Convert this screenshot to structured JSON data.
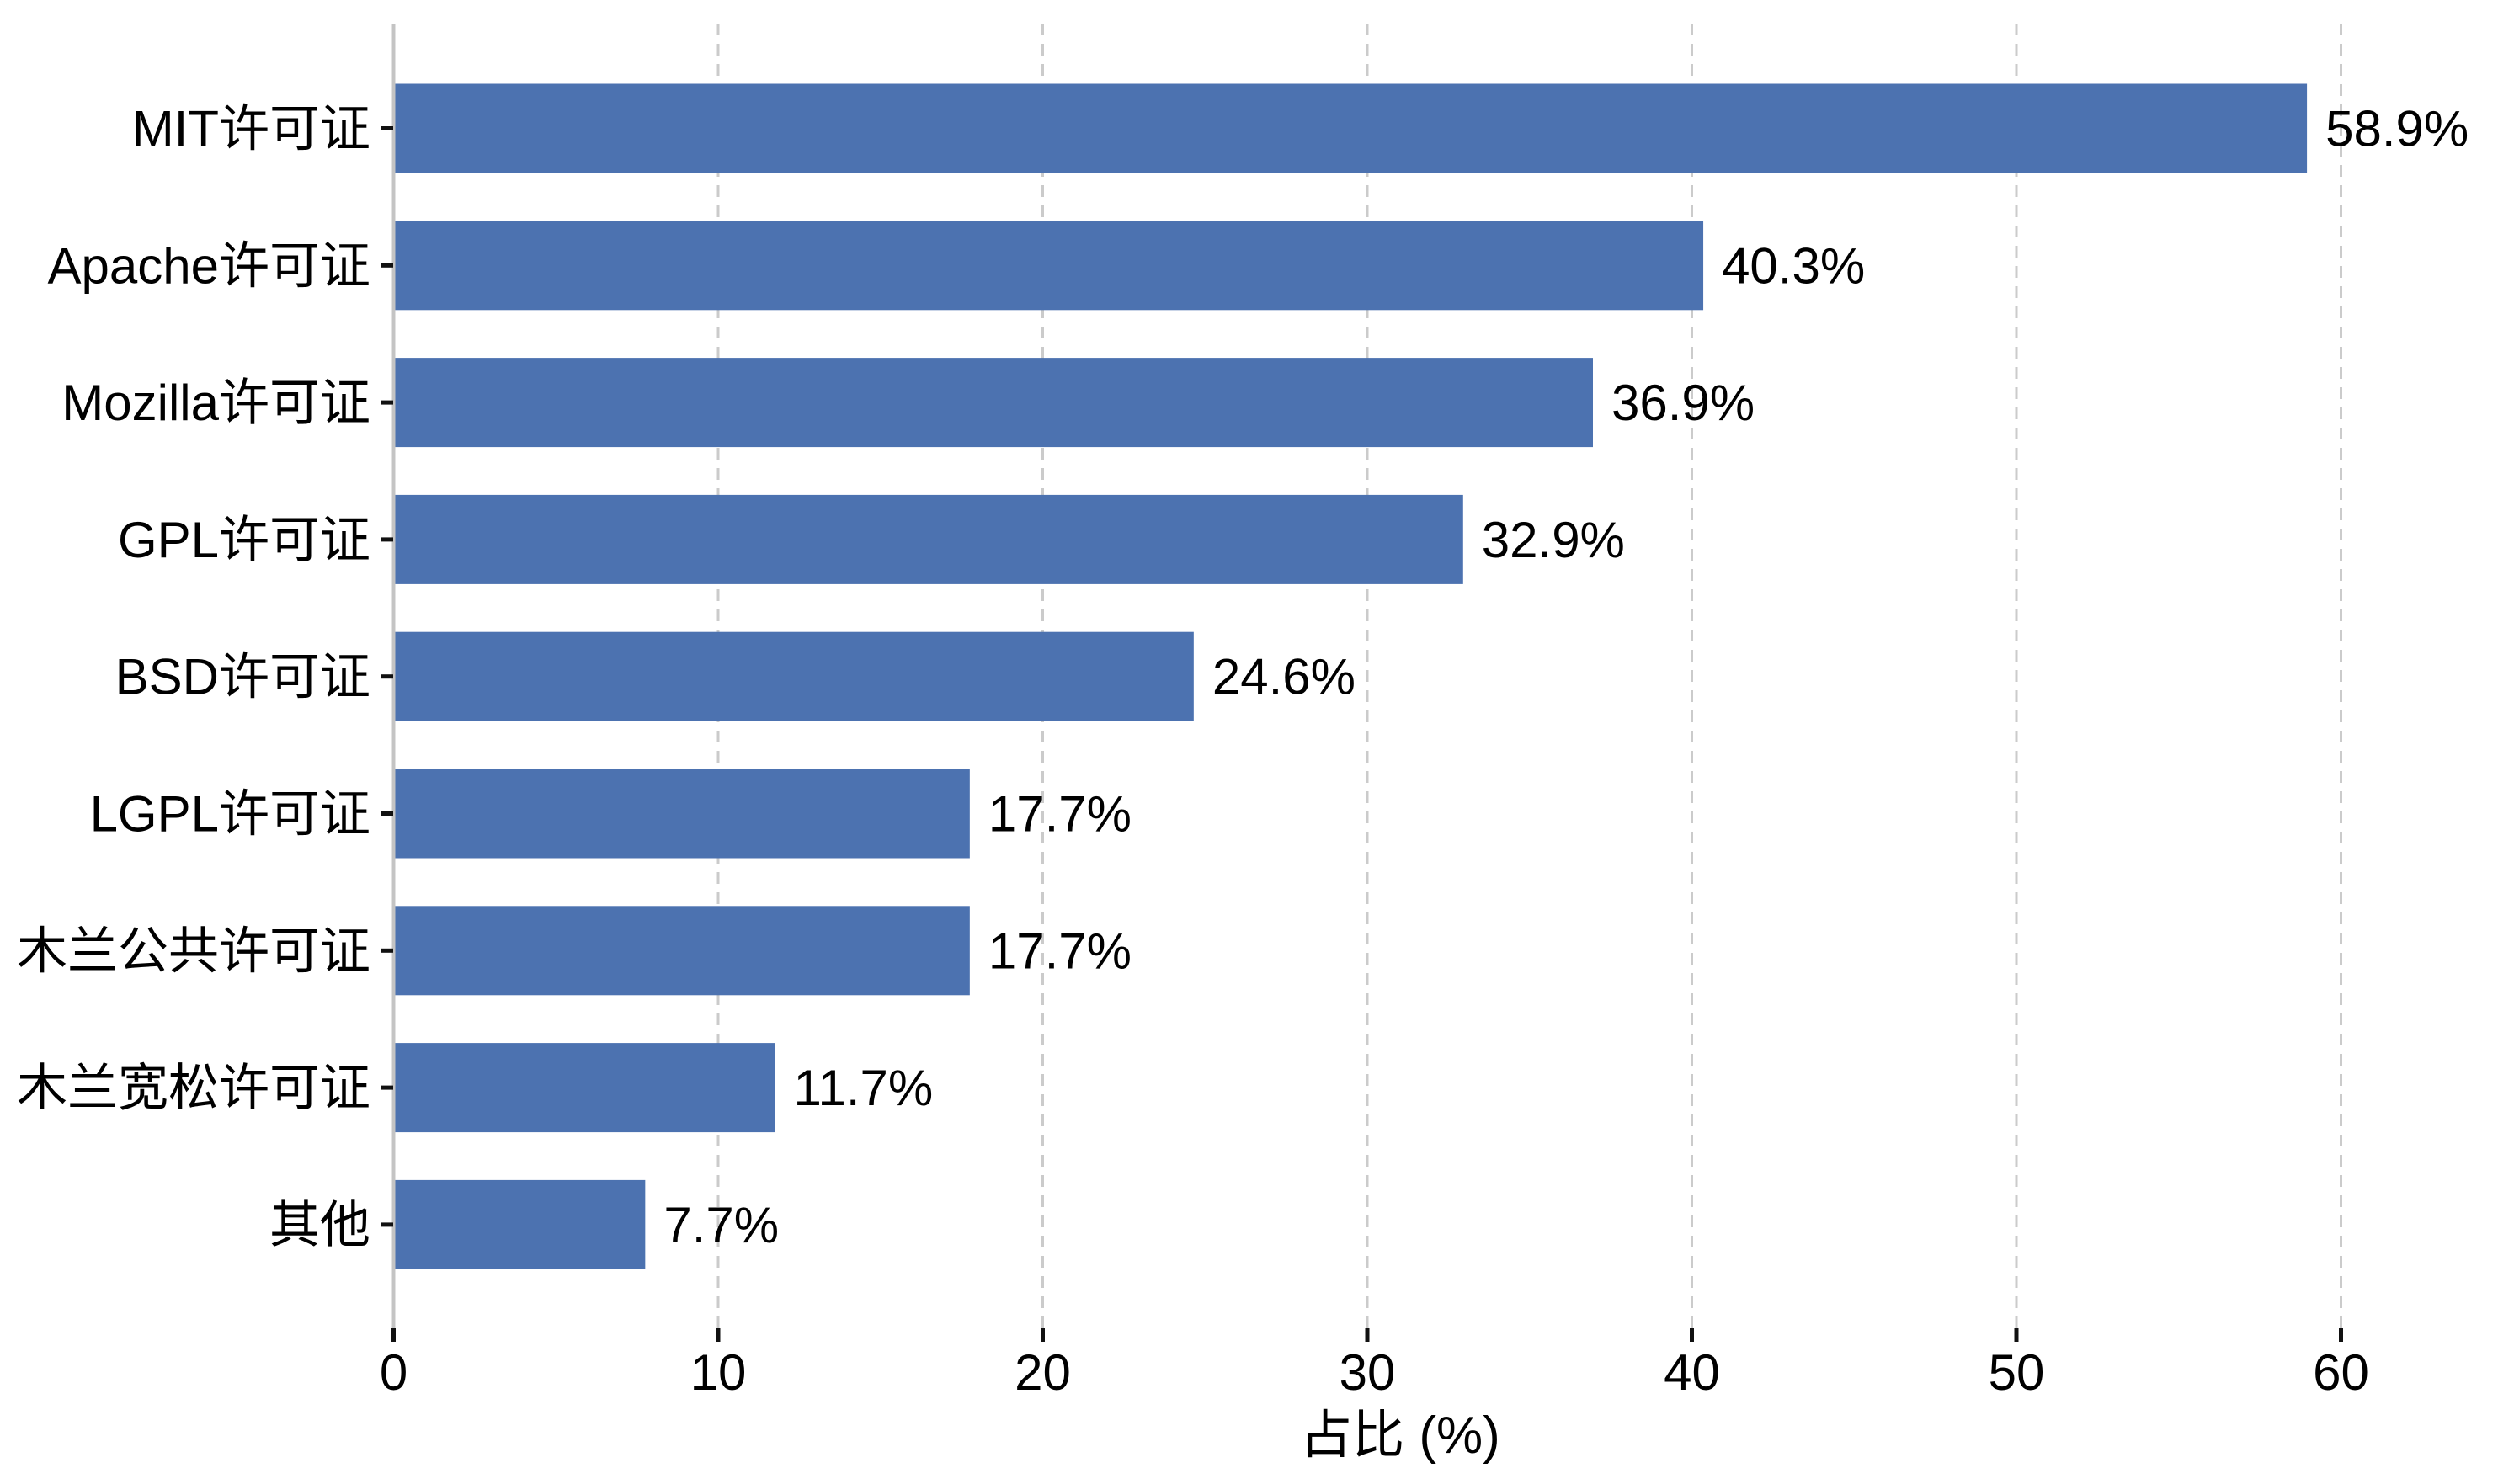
{
  "chart_data": {
    "type": "bar",
    "orientation": "horizontal",
    "title": "",
    "categories": [
      "MIT许可证",
      "Apache许可证",
      "Mozilla许可证",
      "GPL许可证",
      "BSD许可证",
      "LGPL许可证",
      "木兰公共许可证",
      "木兰宽松许可证",
      "其他"
    ],
    "values": [
      58.9,
      40.3,
      36.9,
      32.9,
      24.6,
      17.7,
      17.7,
      11.7,
      7.7
    ],
    "value_labels": [
      "58.9%",
      "40.3%",
      "36.9%",
      "32.9%",
      "24.6%",
      "17.7%",
      "17.7%",
      "11.7%",
      "7.7%"
    ],
    "xlabel": "占比 (%)",
    "xlim": [
      0,
      62
    ],
    "xticks": [
      0,
      10,
      20,
      30,
      40,
      50,
      60
    ],
    "xtick_labels": [
      "0",
      "10",
      "20",
      "30",
      "40",
      "50",
      "60"
    ],
    "grid": {
      "axis": "x",
      "style": "dashed",
      "on": true
    },
    "legend": "none",
    "colors": {
      "bar": "#4C72B0",
      "grid_line": "#CBCBCB",
      "axis_line": "#C4C4C4",
      "tick": "#111111",
      "text": "#000000",
      "background": "#FFFFFF"
    }
  }
}
